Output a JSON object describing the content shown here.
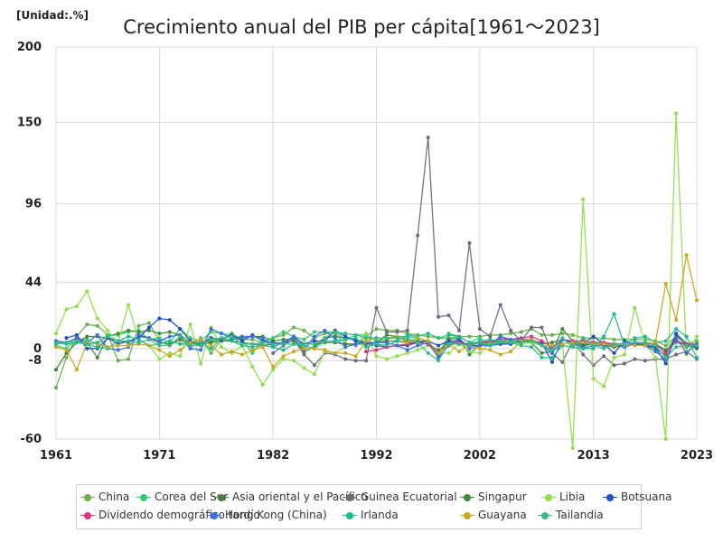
{
  "unit_label": "[Unidad:.%]",
  "chart_data": {
    "type": "line",
    "title": "Crecimiento anual del PIB per cápita[1961～2023]",
    "xlabel": "",
    "ylabel": "",
    "xlim": [
      1961,
      2023
    ],
    "ylim": [
      -60,
      200
    ],
    "x_ticks": [
      "1961",
      "1971",
      "1982",
      "1992",
      "2002",
      "2013",
      "2023"
    ],
    "y_ticks": [
      "200",
      "150",
      "96",
      "44",
      "0",
      "-8",
      "-60"
    ],
    "grid": true,
    "legend": "bottom",
    "x": [
      1961,
      1962,
      1963,
      1964,
      1965,
      1966,
      1967,
      1968,
      1969,
      1970,
      1971,
      1972,
      1973,
      1974,
      1975,
      1976,
      1977,
      1978,
      1979,
      1980,
      1981,
      1982,
      1983,
      1984,
      1985,
      1986,
      1987,
      1988,
      1989,
      1990,
      1991,
      1992,
      1993,
      1994,
      1995,
      1996,
      1997,
      1998,
      1999,
      2000,
      2001,
      2002,
      2003,
      2004,
      2005,
      2006,
      2007,
      2008,
      2009,
      2010,
      2011,
      2012,
      2013,
      2014,
      2015,
      2016,
      2017,
      2018,
      2019,
      2020,
      2021,
      2022,
      2023
    ],
    "series": [
      {
        "name": "China",
        "color": "#6ab04c",
        "values": [
          -26,
          -6,
          8,
          16,
          15,
          9,
          -8,
          -7,
          15,
          17,
          5,
          2,
          6,
          0,
          7,
          -3,
          6,
          10,
          6,
          6,
          4,
          7,
          9,
          14,
          12,
          7,
          10,
          10,
          3,
          2,
          8,
          13,
          12,
          12,
          10,
          9,
          8,
          7,
          7,
          8,
          8,
          8,
          9,
          9,
          10,
          11,
          13,
          9,
          9,
          10,
          9,
          7,
          7,
          7,
          6,
          6,
          6,
          6,
          5,
          2,
          8,
          3,
          5
        ]
      },
      {
        "name": "Corea del Sur",
        "color": "#2ecc71",
        "values": [
          2,
          0,
          6,
          6,
          3,
          9,
          9,
          11,
          12,
          6,
          7,
          4,
          13,
          7,
          5,
          11,
          10,
          9,
          6,
          -3,
          5,
          7,
          11,
          8,
          6,
          11,
          11,
          11,
          6,
          9,
          9,
          5,
          6,
          8,
          8,
          7,
          5,
          -6,
          10,
          8,
          4,
          7,
          3,
          5,
          4,
          5,
          5,
          2,
          0,
          6,
          3,
          2,
          3,
          3,
          2,
          2,
          3,
          2,
          2,
          -1,
          4,
          3,
          1
        ]
      },
      {
        "name": "Asia oriental y el Pacífico",
        "color": "#4a7d3a",
        "values": [
          -14,
          -3,
          4,
          8,
          8,
          7,
          5,
          4,
          8,
          7,
          4,
          3,
          6,
          4,
          3,
          4,
          5,
          5,
          4,
          3,
          2,
          3,
          4,
          5,
          3,
          3,
          4,
          4,
          3,
          3,
          3,
          4,
          5,
          5,
          4,
          4,
          3,
          -1,
          4,
          4,
          2,
          4,
          4,
          5,
          5,
          5,
          6,
          3,
          4,
          6,
          4,
          3,
          3,
          3,
          3,
          3,
          3,
          3,
          3,
          -1,
          6,
          1,
          3
        ]
      },
      {
        "name": "Guinea Ecuatorial",
        "color": "#6b6b80",
        "values": [
          null,
          null,
          null,
          null,
          null,
          null,
          null,
          null,
          null,
          null,
          null,
          null,
          null,
          null,
          null,
          null,
          null,
          null,
          null,
          null,
          null,
          -3,
          2,
          6,
          -4,
          -11,
          -3,
          -4,
          -7,
          -8,
          -8,
          27,
          11,
          11,
          12,
          75,
          140,
          21,
          22,
          12,
          70,
          13,
          8,
          29,
          12,
          5,
          14,
          14,
          -3,
          -9,
          5,
          -4,
          -11,
          -5,
          -11,
          -10,
          -7,
          -8,
          -7,
          -7,
          -4,
          -2,
          -7
        ]
      },
      {
        "name": "Singapur",
        "color": "#3a8c3a",
        "values": [
          5,
          4,
          7,
          4,
          -6,
          8,
          10,
          12,
          11,
          12,
          10,
          11,
          9,
          4,
          2,
          5,
          6,
          6,
          7,
          8,
          8,
          5,
          6,
          6,
          -2,
          1,
          7,
          8,
          7,
          6,
          4,
          4,
          9,
          8,
          5,
          5,
          5,
          -4,
          6,
          7,
          -4,
          3,
          3,
          8,
          5,
          5,
          4,
          -3,
          -2,
          13,
          5,
          1,
          4,
          2,
          1,
          2,
          4,
          2,
          0,
          -4,
          9,
          3,
          0
        ]
      },
      {
        "name": "Libia",
        "color": "#8ee04a",
        "values": [
          10,
          26,
          28,
          38,
          20,
          12,
          4,
          29,
          6,
          2,
          -7,
          -3,
          -5,
          16,
          -10,
          14,
          1,
          -3,
          2,
          -12,
          -24,
          -14,
          -7,
          -8,
          -13,
          -17,
          -2,
          -3,
          1,
          3,
          10,
          -5,
          -7,
          -5,
          -3,
          -1,
          2,
          -3,
          -3,
          3,
          -2,
          -3,
          4,
          3,
          6,
          3,
          4,
          2,
          -2,
          3,
          -66,
          99,
          -20,
          -25,
          -6,
          -4,
          27,
          3,
          -6,
          -60,
          156,
          -4,
          8
        ]
      },
      {
        "name": "Botsuana",
        "color": "#1a4fc0",
        "values": [
          null,
          7,
          9,
          0,
          0,
          7,
          3,
          5,
          7,
          14,
          20,
          19,
          13,
          5,
          3,
          7,
          6,
          9,
          5,
          9,
          5,
          4,
          3,
          8,
          3,
          5,
          5,
          12,
          8,
          5,
          4,
          2,
          1,
          2,
          2,
          4,
          5,
          2,
          5,
          5,
          2,
          2,
          2,
          3,
          3,
          5,
          5,
          4,
          -9,
          6,
          5,
          3,
          8,
          3,
          -3,
          5,
          3,
          2,
          1,
          -10,
          10,
          3,
          1
        ]
      },
      {
        "name": "Dividendo demográfico tardío",
        "color": "#d63384",
        "values": [
          null,
          null,
          null,
          null,
          null,
          null,
          null,
          null,
          null,
          null,
          null,
          null,
          null,
          null,
          null,
          null,
          null,
          null,
          null,
          null,
          null,
          null,
          null,
          null,
          null,
          null,
          null,
          null,
          null,
          null,
          -2,
          -1,
          1,
          2,
          3,
          4,
          3,
          -3,
          2,
          4,
          3,
          4,
          5,
          6,
          6,
          7,
          8,
          5,
          1,
          6,
          5,
          5,
          4,
          4,
          3,
          3,
          4,
          4,
          3,
          -3,
          5,
          3,
          3
        ]
      },
      {
        "name": "Hong Kong (China)",
        "color": "#3a6fe0",
        "values": [
          5,
          4,
          7,
          4,
          9,
          0,
          -1,
          1,
          9,
          7,
          5,
          8,
          9,
          0,
          -1,
          13,
          10,
          7,
          8,
          8,
          7,
          1,
          4,
          8,
          -1,
          8,
          12,
          7,
          1,
          3,
          4,
          4,
          4,
          2,
          -1,
          2,
          4,
          -6,
          2,
          7,
          0,
          2,
          2,
          8,
          6,
          6,
          6,
          2,
          -3,
          6,
          4,
          0,
          2,
          2,
          2,
          1,
          3,
          2,
          -2,
          -7,
          7,
          -3,
          3
        ]
      },
      {
        "name": "Irlanda",
        "color": "#1abc8a",
        "values": [
          4,
          3,
          4,
          3,
          1,
          0,
          5,
          8,
          6,
          2,
          3,
          5,
          3,
          3,
          4,
          0,
          7,
          5,
          2,
          1,
          2,
          1,
          -1,
          3,
          2,
          0,
          5,
          5,
          6,
          7,
          1,
          3,
          2,
          5,
          9,
          8,
          10,
          7,
          9,
          8,
          4,
          4,
          2,
          4,
          4,
          2,
          1,
          -6,
          -6,
          2,
          1,
          0,
          0,
          8,
          23,
          2,
          7,
          8,
          4,
          5,
          13,
          8,
          -6
        ]
      },
      {
        "name": "Guayana",
        "color": "#c8a81e",
        "values": [
          1,
          -1,
          -14,
          4,
          3,
          1,
          2,
          2,
          3,
          2,
          -1,
          -5,
          -1,
          4,
          6,
          2,
          -4,
          -2,
          -4,
          -1,
          1,
          -12,
          -5,
          -2,
          0,
          0,
          -1,
          -3,
          -3,
          -5,
          5,
          7,
          7,
          8,
          4,
          7,
          5,
          -3,
          3,
          -2,
          2,
          0,
          -1,
          -4,
          -2,
          5,
          6,
          2,
          2,
          3,
          4,
          4,
          3,
          3,
          2,
          3,
          2,
          2,
          4,
          43,
          19,
          62,
          32
        ]
      },
      {
        "name": "Tailandia",
        "color": "#3bb88a",
        "values": [
          3,
          4,
          5,
          3,
          4,
          8,
          5,
          5,
          4,
          6,
          2,
          2,
          8,
          2,
          2,
          6,
          7,
          8,
          3,
          3,
          4,
          3,
          3,
          3,
          3,
          3,
          7,
          11,
          10,
          9,
          7,
          7,
          7,
          7,
          7,
          4,
          -3,
          -8,
          3,
          3,
          2,
          5,
          6,
          5,
          4,
          4,
          5,
          2,
          -1,
          7,
          1,
          7,
          2,
          0,
          3,
          3,
          4,
          4,
          2,
          -6,
          1,
          2,
          2
        ]
      }
    ]
  }
}
